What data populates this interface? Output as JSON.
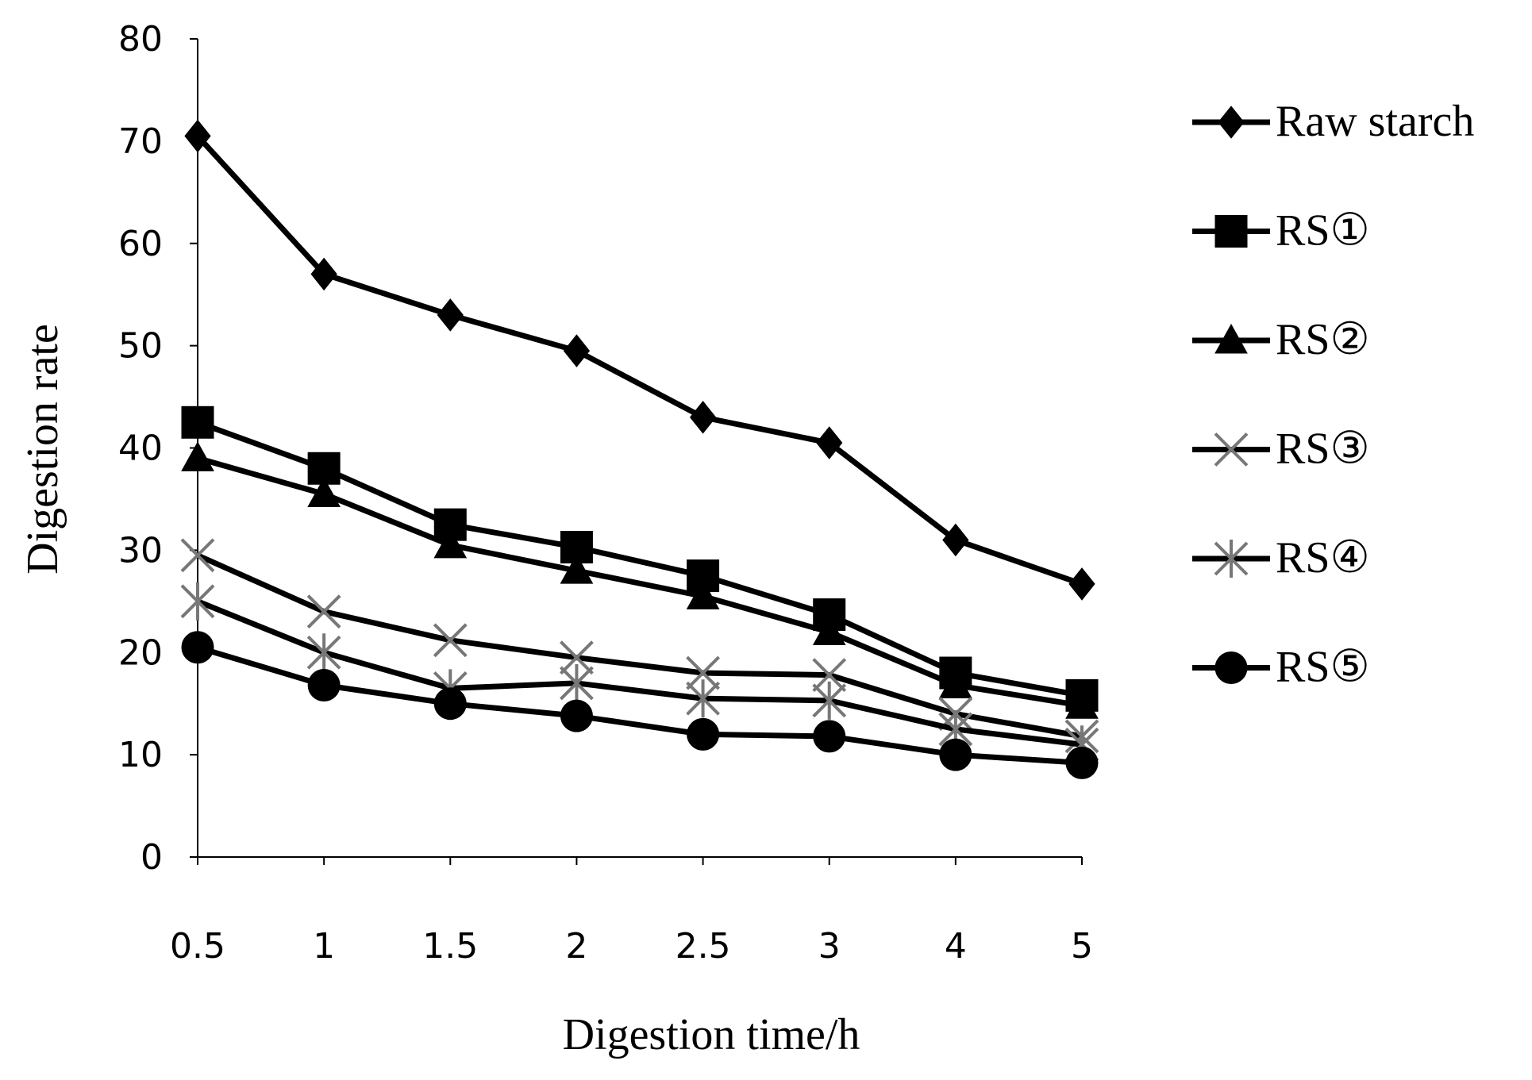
{
  "chart_data": {
    "type": "line",
    "x_label": "Digestion time/h",
    "y_label": "Digestion rate",
    "categories": [
      "0.5",
      "1",
      "1.5",
      "2",
      "2.5",
      "3",
      "4",
      "5"
    ],
    "ylim": [
      0,
      80
    ],
    "yticks": [
      0,
      10,
      20,
      30,
      40,
      50,
      60,
      70,
      80
    ],
    "grid": false,
    "legend": "right",
    "series": [
      {
        "name": "Raw starch",
        "color": "#000000",
        "marker": "diamond",
        "marker_color": "#000000",
        "values": [
          70.5,
          57,
          53,
          49.5,
          43,
          40.5,
          31,
          26.7
        ]
      },
      {
        "name": "RS①",
        "color": "#000000",
        "marker": "square",
        "marker_color": "#000000",
        "values": [
          42.5,
          38,
          32.5,
          30.3,
          27.5,
          23.7,
          18,
          15.8
        ]
      },
      {
        "name": "RS②",
        "color": "#000000",
        "marker": "triangle",
        "marker_color": "#000000",
        "values": [
          39,
          35.5,
          30.5,
          28,
          25.5,
          22,
          16.8,
          14.8
        ]
      },
      {
        "name": "RS③",
        "color": "#000000",
        "marker": "x",
        "marker_color": "#777777",
        "values": [
          29.5,
          24,
          21.2,
          19.5,
          18,
          17.8,
          14,
          11.8
        ]
      },
      {
        "name": "RS④",
        "color": "#000000",
        "marker": "star",
        "marker_color": "#777777",
        "values": [
          25,
          20,
          16.5,
          17,
          15.5,
          15.3,
          12.5,
          11
        ]
      },
      {
        "name": "RS⑤",
        "color": "#000000",
        "marker": "circle",
        "marker_color": "#000000",
        "values": [
          20.5,
          16.8,
          15,
          13.8,
          12,
          11.8,
          10,
          9.2
        ]
      }
    ]
  }
}
